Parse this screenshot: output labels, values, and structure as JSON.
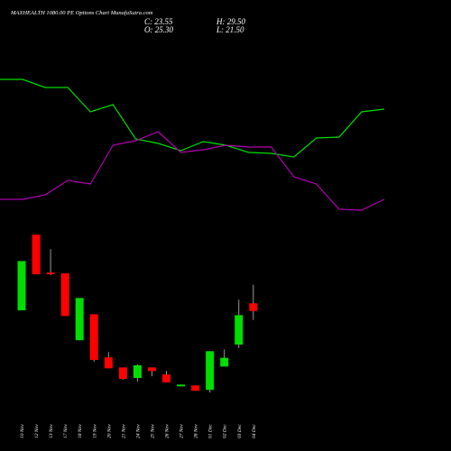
{
  "chart_data": [
    {
      "type": "candlestick",
      "title": "MAXHEALTH 1080.00 PE Options Chart MunafaSutra.com",
      "ohlc_labels": {
        "close": "C: 23.55",
        "open": "O: 25.30",
        "high": "H: 29.50",
        "low": "L: 21.50"
      },
      "categories": [
        "10 Nov",
        "12 Nov",
        "13 Nov",
        "17 Nov",
        "18 Nov",
        "19 Nov",
        "20 Nov",
        "21 Nov",
        "24 Nov",
        "25 Nov",
        "26 Nov",
        "27 Nov",
        "28 Nov",
        "01 Dec",
        "02 Dec",
        "03 Dec",
        "04 Dec"
      ],
      "open": [
        23.7,
        40.9,
        32.3,
        32.1,
        16.9,
        22.8,
        13.0,
        10.7,
        8.3,
        10.7,
        9.1,
        6.4,
        6.6,
        5.6,
        10.9,
        15.9,
        25.3
      ],
      "high": [
        34.9,
        40.9,
        37.6,
        32.1,
        26.5,
        22.8,
        14.2,
        10.7,
        11.4,
        10.7,
        9.9,
        6.8,
        6.6,
        14.4,
        14.8,
        26.1,
        29.5
      ],
      "low": [
        23.7,
        31.9,
        31.7,
        22.4,
        16.9,
        12.0,
        10.5,
        7.9,
        7.5,
        8.7,
        7.3,
        6.4,
        5.4,
        5.0,
        10.9,
        15.1,
        21.5
      ],
      "close": [
        34.9,
        31.9,
        31.9,
        22.4,
        26.5,
        12.4,
        10.5,
        8.1,
        11.2,
        9.9,
        7.3,
        6.8,
        5.4,
        14.4,
        12.9,
        22.6,
        23.55
      ],
      "up_color": "#00dd00",
      "down_color": "#ff0000",
      "wick_color": "#999999",
      "ylim": [
        4,
        43
      ]
    },
    {
      "type": "line",
      "categories": [
        null,
        null,
        null,
        null,
        null,
        null,
        null,
        null,
        null,
        null,
        null,
        null,
        null,
        null,
        null,
        null,
        null,
        null
      ],
      "series": [
        {
          "color": "#00dd00",
          "values": [
            152,
            152,
            143,
            143,
            116,
            124,
            86,
            81,
            73,
            83,
            79,
            71,
            70,
            66,
            87,
            88,
            116,
            119
          ]
        },
        {
          "color": "#b000b0",
          "values": [
            19,
            19,
            24,
            40,
            36,
            79,
            84,
            94,
            71,
            74,
            79,
            77,
            77,
            44,
            36,
            8,
            7,
            19
          ]
        }
      ],
      "ylim": [
        0,
        160
      ]
    }
  ]
}
